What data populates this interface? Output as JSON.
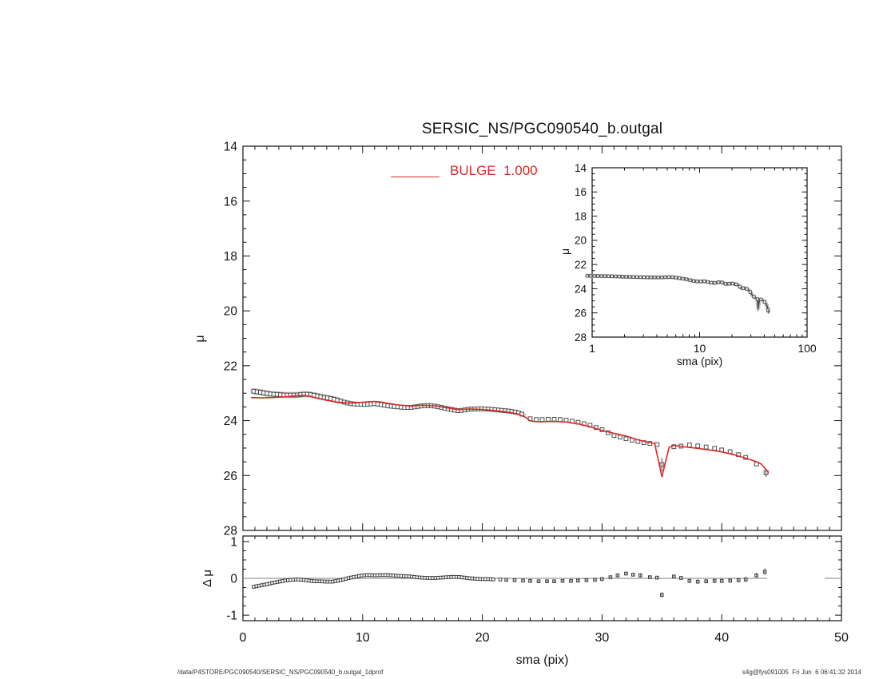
{
  "title": "SERSIC_NS/PGC090540_b.outgal",
  "legend": {
    "label": "BULGE  1.000",
    "color": "#d92b2b",
    "style": "line"
  },
  "footer": {
    "left_path": "/data/P4STORE/PGC090540/SERSIC_NS/PGC090540_b.outgal_1dprof",
    "right_stamp": "s4g@fys091005  Fri Jun  6 06:41:32 2014"
  },
  "colors": {
    "background": "#ffffff",
    "axis": "#111111",
    "model_line": "#d92b2b",
    "data_marker": "#4d4d4d",
    "data_envelope": "#c8c8c8",
    "zero_line": "#999999"
  },
  "chart_data": [
    {
      "id": "main",
      "type": "line+scatter",
      "title": "SERSIC_NS/PGC090540_b.outgal",
      "xlabel": "",
      "ylabel": "μ",
      "xlim": [
        0,
        50
      ],
      "ylim": [
        14,
        28
      ],
      "y_inverted": true,
      "xticks": [
        0,
        10,
        20,
        30,
        40,
        50
      ],
      "x_minor_step": 1,
      "yticks": [
        14,
        16,
        18,
        20,
        22,
        24,
        26,
        28
      ],
      "y_minor_step": 0.5,
      "grid": false,
      "legend_position": "top-center",
      "series": [
        {
          "name": "observed-profile",
          "role": "data",
          "marker": "open-square",
          "color": "#4d4d4d",
          "points": [
            [
              0.9,
              22.93
            ],
            [
              1.2,
              22.95
            ],
            [
              1.5,
              22.97
            ],
            [
              2,
              23.01
            ],
            [
              2.5,
              23.04
            ],
            [
              3,
              23.05
            ],
            [
              3.5,
              23.07
            ],
            [
              4,
              23.07
            ],
            [
              4.5,
              23.07
            ],
            [
              5,
              23.04
            ],
            [
              5.5,
              23.04
            ],
            [
              6,
              23.08
            ],
            [
              6.5,
              23.13
            ],
            [
              7,
              23.17
            ],
            [
              7.5,
              23.21
            ],
            [
              8,
              23.27
            ],
            [
              8.5,
              23.33
            ],
            [
              9,
              23.38
            ],
            [
              9.5,
              23.4
            ],
            [
              10,
              23.41
            ],
            [
              10.5,
              23.4
            ],
            [
              11,
              23.38
            ],
            [
              11.5,
              23.41
            ],
            [
              12,
              23.45
            ],
            [
              12.5,
              23.48
            ],
            [
              13,
              23.5
            ],
            [
              13.5,
              23.52
            ],
            [
              14,
              23.52
            ],
            [
              14.5,
              23.49
            ],
            [
              15,
              23.46
            ],
            [
              15.5,
              23.45
            ],
            [
              16,
              23.47
            ],
            [
              16.5,
              23.51
            ],
            [
              17,
              23.56
            ],
            [
              17.5,
              23.6
            ],
            [
              18,
              23.64
            ],
            [
              18.5,
              23.61
            ],
            [
              19,
              23.58
            ],
            [
              19.5,
              23.57
            ],
            [
              20,
              23.57
            ],
            [
              20.5,
              23.58
            ],
            [
              21,
              23.6
            ],
            [
              21.5,
              23.62
            ],
            [
              22,
              23.64
            ],
            [
              22.5,
              23.67
            ],
            [
              23,
              23.71
            ],
            [
              23.5,
              23.8
            ],
            [
              24,
              23.93
            ],
            [
              24.5,
              23.96
            ],
            [
              25,
              23.96
            ],
            [
              25.5,
              23.95
            ],
            [
              26,
              23.95
            ],
            [
              26.5,
              23.96
            ],
            [
              27,
              23.98
            ],
            [
              27.5,
              24.02
            ],
            [
              28,
              24.06
            ],
            [
              28.5,
              24.11
            ],
            [
              29,
              24.17
            ],
            [
              29.5,
              24.25
            ],
            [
              30,
              24.33
            ],
            [
              30.5,
              24.44
            ],
            [
              31,
              24.54
            ],
            [
              31.5,
              24.6
            ],
            [
              32,
              24.66
            ],
            [
              32.5,
              24.71
            ],
            [
              33,
              24.76
            ],
            [
              33.5,
              24.8
            ],
            [
              34,
              24.83
            ],
            [
              34.6,
              24.87
            ],
            [
              35,
              25.6,
              0.25
            ],
            [
              36,
              24.95
            ],
            [
              36.6,
              24.93
            ],
            [
              37.3,
              24.89
            ],
            [
              38,
              24.92
            ],
            [
              38.7,
              24.96
            ],
            [
              39.4,
              25.01
            ],
            [
              40,
              25.07
            ],
            [
              40.7,
              25.13
            ],
            [
              41.4,
              25.24
            ],
            [
              42,
              25.34
            ],
            [
              42.9,
              25.58
            ],
            [
              43.7,
              25.9,
              0.15
            ]
          ]
        },
        {
          "name": "bulge-model",
          "role": "model",
          "label": "BULGE  1.000",
          "color": "#d92b2b",
          "points": [
            [
              0.7,
              23.16
            ],
            [
              1.5,
              23.17
            ],
            [
              2.5,
              23.16
            ],
            [
              3.5,
              23.13
            ],
            [
              4.5,
              23.09
            ],
            [
              5,
              23.08
            ],
            [
              5.5,
              23.1
            ],
            [
              6,
              23.16
            ],
            [
              6.5,
              23.21
            ],
            [
              7,
              23.26
            ],
            [
              7.5,
              23.3
            ],
            [
              8,
              23.33
            ],
            [
              8.5,
              23.35
            ],
            [
              9,
              23.36
            ],
            [
              9.5,
              23.35
            ],
            [
              10,
              23.33
            ],
            [
              10.5,
              23.31
            ],
            [
              11,
              23.3
            ],
            [
              11.5,
              23.32
            ],
            [
              12,
              23.36
            ],
            [
              13,
              23.43
            ],
            [
              14,
              23.47
            ],
            [
              15,
              23.44
            ],
            [
              16,
              23.46
            ],
            [
              17,
              23.53
            ],
            [
              18,
              23.6
            ],
            [
              19,
              23.58
            ],
            [
              20,
              23.59
            ],
            [
              21,
              23.63
            ],
            [
              22,
              23.68
            ],
            [
              23,
              23.76
            ],
            [
              23.6,
              23.88
            ],
            [
              24,
              24.01
            ],
            [
              24.5,
              24.04
            ],
            [
              25,
              24.04
            ],
            [
              26,
              24.03
            ],
            [
              27,
              24.05
            ],
            [
              28,
              24.12
            ],
            [
              29,
              24.22
            ],
            [
              30,
              24.36
            ],
            [
              31,
              24.46
            ],
            [
              32,
              24.56
            ],
            [
              33,
              24.7
            ],
            [
              34,
              24.8
            ],
            [
              34.4,
              24.84
            ],
            [
              35,
              26.05
            ],
            [
              35.6,
              24.97
            ],
            [
              36,
              24.9
            ],
            [
              37,
              24.96
            ],
            [
              38,
              25.01
            ],
            [
              39,
              25.07
            ],
            [
              40,
              25.14
            ],
            [
              41,
              25.24
            ],
            [
              42,
              25.37
            ],
            [
              42.8,
              25.48
            ],
            [
              43.3,
              25.58
            ],
            [
              43.9,
              25.88
            ]
          ]
        }
      ]
    },
    {
      "id": "inset",
      "type": "line+scatter",
      "xlabel": "sma (pix)",
      "ylabel": "μ",
      "xscale": "log",
      "xlim": [
        1,
        100
      ],
      "ylim": [
        14,
        28
      ],
      "y_inverted": true,
      "xticks": [
        1,
        10,
        100
      ],
      "yticks": [
        14,
        16,
        18,
        20,
        22,
        24,
        26,
        28
      ],
      "y_minor_step": 0.5,
      "grid": false,
      "series": [
        {
          "name": "observed-profile",
          "role": "data",
          "marker": "open-square",
          "color": "#4d4d4d",
          "points_ref": "chart_data.0.series.0.points"
        }
      ]
    },
    {
      "id": "residual",
      "type": "scatter",
      "xlabel": "sma (pix)",
      "ylabel": "Δ μ",
      "xlim": [
        0,
        50
      ],
      "ylim": [
        -1.15,
        1.15
      ],
      "y_inverted": false,
      "xticks": [
        0,
        10,
        20,
        30,
        40,
        50
      ],
      "x_minor_step": 1,
      "yticks": [
        -1,
        0,
        1
      ],
      "y_minor_step": 0.25,
      "grid": false,
      "zero_line": {
        "color": "#999999",
        "segments": [
          [
            0,
            43.8
          ],
          [
            48.6,
            50
          ]
        ]
      },
      "series": [
        {
          "name": "data-minus-model",
          "role": "residual",
          "marker": "open-square",
          "color": "#3d3d3d",
          "points": [
            [
              0.9,
              -0.23,
              0
            ],
            [
              1.2,
              -0.21,
              0
            ],
            [
              1.5,
              -0.19,
              0
            ],
            [
              2,
              -0.16,
              0
            ],
            [
              2.5,
              -0.12,
              0
            ],
            [
              3,
              -0.09,
              0
            ],
            [
              3.5,
              -0.06,
              0
            ],
            [
              4,
              -0.04,
              0
            ],
            [
              4.5,
              -0.03,
              0
            ],
            [
              5,
              -0.04,
              0
            ],
            [
              5.5,
              -0.06,
              0
            ],
            [
              6,
              -0.08,
              0
            ],
            [
              6.5,
              -0.08,
              0
            ],
            [
              7,
              -0.09,
              0
            ],
            [
              7.5,
              -0.09,
              0
            ],
            [
              8,
              -0.06,
              0
            ],
            [
              8.5,
              -0.02,
              0
            ],
            [
              9,
              0.02,
              0
            ],
            [
              9.5,
              0.05,
              0
            ],
            [
              10,
              0.08,
              0
            ],
            [
              10.5,
              0.09,
              0
            ],
            [
              11,
              0.08,
              0
            ],
            [
              11.5,
              0.09,
              0
            ],
            [
              12,
              0.09,
              0
            ],
            [
              12.5,
              0.08,
              0
            ],
            [
              13,
              0.07,
              0
            ],
            [
              13.5,
              0.06,
              0
            ],
            [
              14,
              0.05,
              0
            ],
            [
              14.5,
              0.03,
              0
            ],
            [
              15,
              0.02,
              0
            ],
            [
              15.5,
              0.01,
              0
            ],
            [
              16,
              0.01,
              0
            ],
            [
              16.5,
              0.02,
              0
            ],
            [
              17,
              0.03,
              0
            ],
            [
              17.5,
              0.04,
              0
            ],
            [
              18,
              0.04,
              0
            ],
            [
              18.5,
              0.02,
              0
            ],
            [
              19,
              0,
              0
            ],
            [
              19.5,
              -0.01,
              0
            ],
            [
              20,
              -0.02,
              0
            ],
            [
              20.5,
              -0.02,
              0
            ],
            [
              21,
              -0.03,
              0
            ],
            [
              21.5,
              -0.03,
              0
            ],
            [
              22,
              -0.04,
              0.02
            ],
            [
              22.7,
              -0.05,
              0.02
            ],
            [
              23.4,
              -0.06,
              0.02
            ],
            [
              24,
              -0.07,
              0.03
            ],
            [
              24.7,
              -0.08,
              0.03
            ],
            [
              25.4,
              -0.08,
              0.03
            ],
            [
              26,
              -0.08,
              0.03
            ],
            [
              26.7,
              -0.07,
              0.03
            ],
            [
              27.4,
              -0.07,
              0.03
            ],
            [
              28,
              -0.06,
              0.04
            ],
            [
              28.7,
              -0.05,
              0.04
            ],
            [
              29.4,
              -0.04,
              0.04
            ],
            [
              30,
              -0.02,
              0.04
            ],
            [
              30.7,
              0.03,
              0.05
            ],
            [
              31.3,
              0.08,
              0.05
            ],
            [
              32,
              0.13,
              0.05
            ],
            [
              32.6,
              0.1,
              0.05
            ],
            [
              33.2,
              0.08,
              0.06
            ],
            [
              34,
              0.03,
              0.05
            ],
            [
              34.6,
              0.02,
              0.05
            ],
            [
              35,
              -0.45,
              0.07
            ],
            [
              36,
              0.05,
              0.05
            ],
            [
              36.6,
              0.01,
              0.05
            ],
            [
              37.3,
              -0.07,
              0.06
            ],
            [
              38,
              -0.09,
              0.06
            ],
            [
              38.7,
              -0.08,
              0.06
            ],
            [
              39.4,
              -0.07,
              0.06
            ],
            [
              40,
              -0.07,
              0.06
            ],
            [
              40.7,
              -0.06,
              0.06
            ],
            [
              41.4,
              -0.05,
              0.06
            ],
            [
              42,
              -0.03,
              0.07
            ],
            [
              42.9,
              0.08,
              0.07
            ],
            [
              43.6,
              0.18,
              0.09
            ]
          ]
        }
      ]
    }
  ]
}
